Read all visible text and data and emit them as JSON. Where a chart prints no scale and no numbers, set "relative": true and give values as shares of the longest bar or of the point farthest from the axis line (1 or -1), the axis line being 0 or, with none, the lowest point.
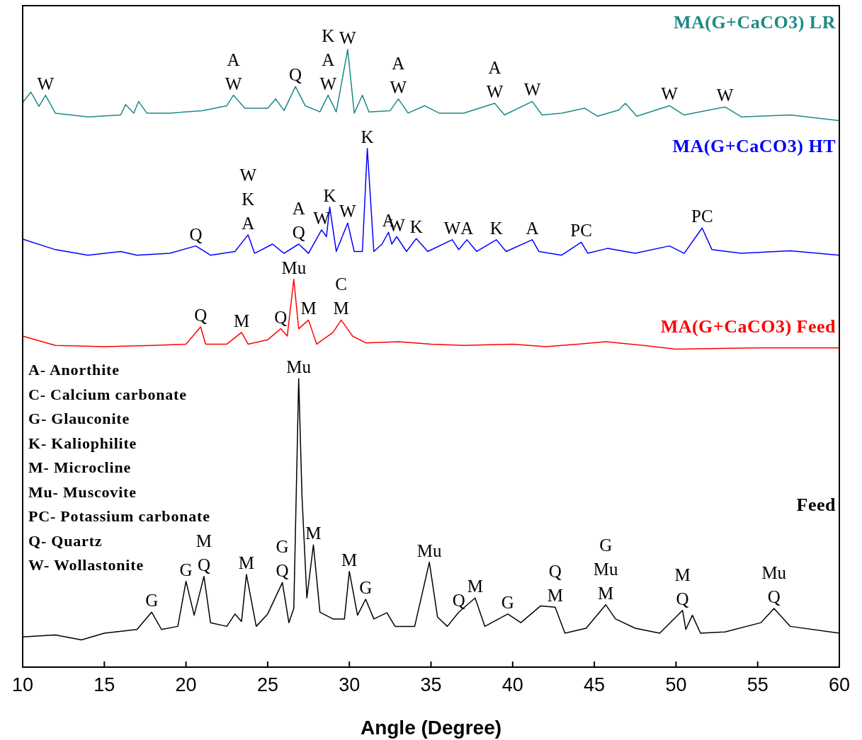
{
  "chart_data": {
    "type": "line",
    "relative": true,
    "xlabel": "Angle (Degree)",
    "xlim": [
      10,
      60
    ],
    "xticks": [
      10,
      15,
      20,
      25,
      30,
      35,
      40,
      45,
      50,
      55,
      60
    ],
    "tick_labels": "x",
    "series": [
      {
        "name": "MA(G+CaCO3) LR",
        "color": "#1a8a87",
        "x": [
          10,
          10.5,
          11,
          11.4,
          12,
          14,
          16,
          16.3,
          16.8,
          17.1,
          17.6,
          19,
          21,
          22.5,
          22.9,
          23.6,
          25,
          25.5,
          26,
          26.7,
          27.3,
          28.2,
          28.7,
          29.2,
          29.9,
          30.3,
          30.8,
          31.2,
          32.5,
          33,
          33.6,
          34.6,
          35.5,
          37,
          38.9,
          39.5,
          41.2,
          41.8,
          43,
          44.4,
          45.2,
          46.5,
          46.9,
          47.6,
          49.6,
          50.5,
          53,
          54,
          57,
          60
        ],
        "values": [
          0.914,
          0.931,
          0.908,
          0.926,
          0.897,
          0.891,
          0.894,
          0.911,
          0.897,
          0.916,
          0.897,
          0.897,
          0.901,
          0.909,
          0.926,
          0.905,
          0.905,
          0.92,
          0.901,
          0.94,
          0.909,
          0.899,
          0.926,
          0.899,
          1,
          0.897,
          0.926,
          0.899,
          0.901,
          0.92,
          0.897,
          0.909,
          0.897,
          0.897,
          0.913,
          0.894,
          0.916,
          0.894,
          0.897,
          0.905,
          0.892,
          0.902,
          0.913,
          0.892,
          0.909,
          0.894,
          0.907,
          0.891,
          0.894,
          0.885
        ]
      },
      {
        "name": "MA(G+CaCO3) HT",
        "color": "#0000ff",
        "x": [
          10,
          12,
          14,
          16,
          17,
          19,
          20.6,
          21.5,
          23,
          23.8,
          24.2,
          25.3,
          26,
          26.9,
          27.5,
          28.3,
          28.6,
          28.8,
          29.2,
          29.9,
          30.3,
          30.8,
          31.1,
          31.5,
          32,
          32.4,
          32.6,
          32.9,
          33.5,
          34.1,
          34.8,
          36.3,
          36.7,
          37.2,
          37.8,
          39,
          39.6,
          41.2,
          41.6,
          43,
          44.2,
          44.6,
          45.8,
          47.5,
          49.6,
          50.5,
          51.6,
          52.2,
          54,
          57,
          60
        ],
        "values": [
          0.693,
          0.676,
          0.667,
          0.673,
          0.667,
          0.67,
          0.682,
          0.667,
          0.673,
          0.7,
          0.67,
          0.685,
          0.67,
          0.685,
          0.67,
          0.708,
          0.697,
          0.745,
          0.673,
          0.719,
          0.673,
          0.673,
          0.84,
          0.673,
          0.685,
          0.704,
          0.685,
          0.697,
          0.673,
          0.694,
          0.673,
          0.692,
          0.676,
          0.692,
          0.673,
          0.692,
          0.673,
          0.692,
          0.673,
          0.667,
          0.688,
          0.67,
          0.678,
          0.67,
          0.682,
          0.67,
          0.711,
          0.676,
          0.67,
          0.674,
          0.667
        ]
      },
      {
        "name": "MA(G+CaCO3) Feed",
        "color": "#ff0000",
        "x": [
          10,
          12,
          15,
          18,
          20,
          20.9,
          21.2,
          22.5,
          23.4,
          23.8,
          25,
          25.8,
          26.2,
          26.6,
          26.9,
          27.5,
          28,
          29,
          29.5,
          30.2,
          31,
          33,
          35,
          37,
          40,
          42,
          44,
          45.7,
          48,
          50,
          55,
          60
        ],
        "values": [
          0.536,
          0.521,
          0.519,
          0.521,
          0.523,
          0.551,
          0.523,
          0.523,
          0.542,
          0.523,
          0.53,
          0.548,
          0.536,
          0.628,
          0.548,
          0.562,
          0.523,
          0.542,
          0.562,
          0.536,
          0.525,
          0.527,
          0.523,
          0.521,
          0.523,
          0.519,
          0.523,
          0.527,
          0.521,
          0.515,
          0.517,
          0.517
        ]
      },
      {
        "name": "Feed",
        "color": "#000000",
        "x": [
          10,
          12,
          13.6,
          15,
          17,
          17.9,
          18.5,
          19.5,
          20,
          20.5,
          21.1,
          21.5,
          22.5,
          23,
          23.4,
          23.7,
          24.3,
          25,
          25.9,
          26.3,
          26.6,
          26.9,
          27.1,
          27.4,
          27.8,
          28.2,
          29,
          29.7,
          30,
          30.5,
          31,
          31.5,
          32.3,
          32.8,
          34,
          34.9,
          35.4,
          36,
          36.7,
          37.7,
          38.3,
          39.7,
          40.5,
          41.7,
          42.6,
          43.2,
          44.5,
          45.7,
          46.3,
          47.5,
          49,
          50.4,
          50.6,
          51,
          51.5,
          53,
          55.2,
          56,
          57,
          60
        ],
        "values": [
          0.049,
          0.052,
          0.044,
          0.055,
          0.061,
          0.089,
          0.061,
          0.066,
          0.139,
          0.084,
          0.147,
          0.072,
          0.066,
          0.086,
          0.074,
          0.15,
          0.066,
          0.086,
          0.137,
          0.072,
          0.095,
          0.467,
          0.278,
          0.112,
          0.198,
          0.089,
          0.078,
          0.078,
          0.155,
          0.084,
          0.11,
          0.078,
          0.088,
          0.066,
          0.066,
          0.17,
          0.081,
          0.066,
          0.089,
          0.112,
          0.066,
          0.086,
          0.072,
          0.099,
          0.097,
          0.055,
          0.063,
          0.101,
          0.078,
          0.063,
          0.055,
          0.092,
          0.061,
          0.084,
          0.055,
          0.057,
          0.072,
          0.095,
          0.066,
          0.055
        ]
      }
    ],
    "annotations": [
      "A- Anorthite",
      "C- Calcium carbonate",
      "G- Glauconite",
      "K- Kaliophilite",
      "M- Microcline",
      "Mu- Muscovite",
      "PC- Potassium carbonate",
      "Q- Quartz",
      "W- Wollastonite",
      {
        "text": "W",
        "x": 11.4,
        "y": 0.926
      },
      {
        "text": "A",
        "x": 22.9,
        "y": 0.926
      },
      {
        "text": "W",
        "x": 22.9,
        "y": 0.926
      },
      {
        "text": "Q",
        "x": 26.7,
        "y": 0.94
      },
      {
        "text": "K",
        "x": 28.7,
        "y": 0.926
      },
      {
        "text": "A",
        "x": 28.7,
        "y": 0.926
      },
      {
        "text": "W",
        "x": 28.7,
        "y": 0.926
      },
      {
        "text": "W",
        "x": 29.9,
        "y": 1
      },
      {
        "text": "A",
        "x": 33,
        "y": 0.92
      },
      {
        "text": "W",
        "x": 33,
        "y": 0.92
      },
      {
        "text": "A",
        "x": 38.9,
        "y": 0.913
      },
      {
        "text": "W",
        "x": 38.9,
        "y": 0.913
      },
      {
        "text": "W",
        "x": 41.2,
        "y": 0.916
      },
      {
        "text": "W",
        "x": 49.6,
        "y": 0.909
      },
      {
        "text": "W",
        "x": 53,
        "y": 0.907
      },
      {
        "text": "Q",
        "x": 20.6,
        "y": 0.682
      },
      {
        "text": "W",
        "x": 23.8,
        "y": 0.7
      },
      {
        "text": "K",
        "x": 23.8,
        "y": 0.7
      },
      {
        "text": "A",
        "x": 23.8,
        "y": 0.7
      },
      {
        "text": "A",
        "x": 26.9,
        "y": 0.685
      },
      {
        "text": "Q",
        "x": 26.9,
        "y": 0.685
      },
      {
        "text": "W",
        "x": 28.3,
        "y": 0.708
      },
      {
        "text": "K",
        "x": 28.8,
        "y": 0.745
      },
      {
        "text": "W",
        "x": 29.9,
        "y": 0.719
      },
      {
        "text": "K",
        "x": 31.1,
        "y": 0.84
      },
      {
        "text": "A",
        "x": 32.4,
        "y": 0.704
      },
      {
        "text": "W",
        "x": 32.9,
        "y": 0.697
      },
      {
        "text": "K",
        "x": 34.1,
        "y": 0.694
      },
      {
        "text": "W",
        "x": 36.3,
        "y": 0.692
      },
      {
        "text": "A",
        "x": 37.2,
        "y": 0.692
      },
      {
        "text": "K",
        "x": 39,
        "y": 0.692
      },
      {
        "text": "A",
        "x": 41.2,
        "y": 0.692
      },
      {
        "text": "PC",
        "x": 44.2,
        "y": 0.688
      },
      {
        "text": "PC",
        "x": 51.6,
        "y": 0.711
      },
      {
        "text": "Q",
        "x": 20.9,
        "y": 0.551
      },
      {
        "text": "M",
        "x": 23.4,
        "y": 0.542
      },
      {
        "text": "Q",
        "x": 25.8,
        "y": 0.548
      },
      {
        "text": "Mu",
        "x": 26.6,
        "y": 0.628
      },
      {
        "text": "M",
        "x": 27.5,
        "y": 0.562
      },
      {
        "text": "C",
        "x": 29.5,
        "y": 0.562
      },
      {
        "text": "M",
        "x": 29.5,
        "y": 0.562
      },
      {
        "text": "Mu",
        "x": 26.9,
        "y": 0.467
      },
      {
        "text": "G",
        "x": 17.9,
        "y": 0.089
      },
      {
        "text": "G",
        "x": 20,
        "y": 0.139
      },
      {
        "text": "M",
        "x": 21.1,
        "y": 0.147
      },
      {
        "text": "Q",
        "x": 21.1,
        "y": 0.147
      },
      {
        "text": "M",
        "x": 23.7,
        "y": 0.15
      },
      {
        "text": "G",
        "x": 25.9,
        "y": 0.137
      },
      {
        "text": "Q",
        "x": 25.9,
        "y": 0.137
      },
      {
        "text": "M",
        "x": 27.8,
        "y": 0.198
      },
      {
        "text": "M",
        "x": 30,
        "y": 0.155
      },
      {
        "text": "G",
        "x": 31,
        "y": 0.11
      },
      {
        "text": "Mu",
        "x": 34.9,
        "y": 0.17
      },
      {
        "text": "Q",
        "x": 36.7,
        "y": 0.089
      },
      {
        "text": "M",
        "x": 37.7,
        "y": 0.112
      },
      {
        "text": "G",
        "x": 39.7,
        "y": 0.086
      },
      {
        "text": "Q",
        "x": 42.6,
        "y": 0.097
      },
      {
        "text": "M",
        "x": 42.6,
        "y": 0.097
      },
      {
        "text": "G",
        "x": 45.7,
        "y": 0.101
      },
      {
        "text": "Mu",
        "x": 45.7,
        "y": 0.101
      },
      {
        "text": "M",
        "x": 45.7,
        "y": 0.101
      },
      {
        "text": "M",
        "x": 50.4,
        "y": 0.092
      },
      {
        "text": "Q",
        "x": 50.4,
        "y": 0.092
      },
      {
        "text": "Mu",
        "x": 56,
        "y": 0.095
      },
      {
        "text": "Q",
        "x": 56,
        "y": 0.095
      }
    ]
  }
}
